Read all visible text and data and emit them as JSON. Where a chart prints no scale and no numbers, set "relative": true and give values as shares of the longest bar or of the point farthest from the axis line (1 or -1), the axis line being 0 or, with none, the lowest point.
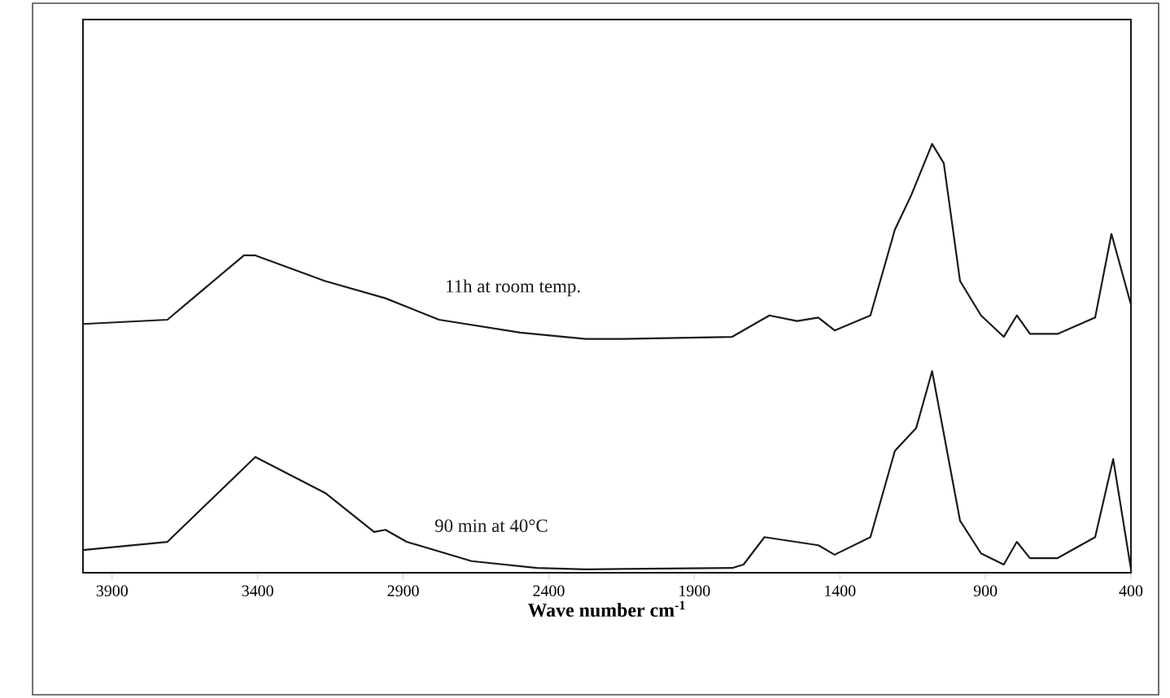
{
  "chart_data": {
    "type": "line",
    "relative": true,
    "xlabel": "**Wave number cm$^{-1}$**",
    "xlim": [
      4000,
      400
    ],
    "xticks": [
      3900,
      3400,
      2900,
      2400,
      1900,
      1400,
      900,
      400
    ],
    "grid": false,
    "legend": false,
    "marker": "none",
    "line_style": "solid",
    "series": [
      {
        "name": "11h at room temp.",
        "color": "#1a1a1a",
        "x": [
          4000,
          3710,
          3447,
          3408,
          3168,
          2961,
          2777,
          2497,
          2273,
          2145,
          1770,
          1642,
          1547,
          1474,
          1418,
          1295,
          1211,
          1155,
          1083,
          1043,
          987,
          915,
          837,
          792,
          747,
          652,
          523,
          467,
          400
        ],
        "values": [
          0.58,
          0.59,
          0.74,
          0.74,
          0.68,
          0.64,
          0.59,
          0.56,
          0.545,
          0.545,
          0.55,
          0.6,
          0.587,
          0.595,
          0.565,
          0.6,
          0.8,
          0.88,
          1.0,
          0.955,
          0.68,
          0.6,
          0.55,
          0.6,
          0.557,
          0.557,
          0.595,
          0.79,
          0.625
        ]
      },
      {
        "name": "90 min at 40°C",
        "color": "#1a1a1a",
        "x": [
          4000,
          3710,
          3408,
          3168,
          3000,
          2961,
          2888,
          2665,
          2441,
          2273,
          1770,
          1731,
          1659,
          1474,
          1418,
          1295,
          1211,
          1138,
          1083,
          987,
          915,
          837,
          792,
          747,
          652,
          523,
          461,
          400
        ],
        "values": [
          0.053,
          0.072,
          0.27,
          0.186,
          0.095,
          0.1,
          0.072,
          0.027,
          0.011,
          0.008,
          0.011,
          0.019,
          0.083,
          0.064,
          0.042,
          0.083,
          0.284,
          0.337,
          0.47,
          0.121,
          0.045,
          0.019,
          0.072,
          0.034,
          0.034,
          0.083,
          0.265,
          0.008
        ]
      }
    ]
  }
}
